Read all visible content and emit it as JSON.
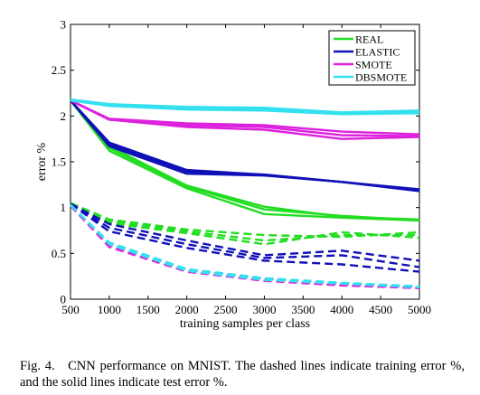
{
  "chart_data": {
    "type": "line",
    "xlabel": "training samples per class",
    "ylabel": "error %",
    "xlim": [
      500,
      5000
    ],
    "ylim": [
      0,
      3
    ],
    "xticks": [
      "500",
      "1000",
      "1500",
      "2000",
      "2500",
      "3000",
      "3500",
      "4000",
      "4500",
      "5000"
    ],
    "yticks": [
      "0",
      "0.5",
      "1",
      "1.5",
      "2",
      "2.5",
      "3"
    ],
    "grid": false,
    "legend_position": "top-right",
    "colors": {
      "REAL": "#22dd22",
      "ELASTIC": "#1010b8",
      "SMOTE": "#dd22dd",
      "DBSMOTE": "#33e0ee"
    },
    "legend": [
      {
        "label": "REAL",
        "color": "#22dd22"
      },
      {
        "label": "ELASTIC",
        "color": "#1010b8"
      },
      {
        "label": "SMOTE",
        "color": "#dd22dd"
      },
      {
        "label": "DBSMOTE",
        "color": "#33e0ee"
      }
    ],
    "x": [
      500,
      1000,
      2000,
      3000,
      4000,
      5000
    ],
    "series": [
      {
        "method": "REAL",
        "kind": "test",
        "values": [
          2.17,
          1.62,
          1.21,
          0.93,
          0.89,
          0.86
        ]
      },
      {
        "method": "REAL",
        "kind": "test",
        "values": [
          2.17,
          1.65,
          1.23,
          0.98,
          0.91,
          0.86
        ]
      },
      {
        "method": "REAL",
        "kind": "test",
        "values": [
          2.17,
          1.67,
          1.24,
          1.01,
          0.9,
          0.87
        ]
      },
      {
        "method": "ELASTIC",
        "kind": "test",
        "values": [
          2.17,
          1.67,
          1.37,
          1.35,
          1.28,
          1.18
        ]
      },
      {
        "method": "ELASTIC",
        "kind": "test",
        "values": [
          2.17,
          1.69,
          1.39,
          1.36,
          1.28,
          1.19
        ]
      },
      {
        "method": "ELASTIC",
        "kind": "test",
        "values": [
          2.17,
          1.71,
          1.41,
          1.36,
          1.28,
          1.2
        ]
      },
      {
        "method": "SMOTE",
        "kind": "test",
        "values": [
          2.17,
          1.96,
          1.88,
          1.85,
          1.75,
          1.77
        ]
      },
      {
        "method": "SMOTE",
        "kind": "test",
        "values": [
          2.17,
          1.96,
          1.9,
          1.88,
          1.79,
          1.78
        ]
      },
      {
        "method": "SMOTE",
        "kind": "test",
        "values": [
          2.17,
          1.97,
          1.92,
          1.9,
          1.83,
          1.8
        ]
      },
      {
        "method": "DBSMOTE",
        "kind": "test",
        "values": [
          2.17,
          2.11,
          2.07,
          2.06,
          2.02,
          2.03
        ]
      },
      {
        "method": "DBSMOTE",
        "kind": "test",
        "values": [
          2.17,
          2.12,
          2.09,
          2.07,
          2.03,
          2.04
        ]
      },
      {
        "method": "DBSMOTE",
        "kind": "test",
        "values": [
          2.18,
          2.13,
          2.1,
          2.09,
          2.04,
          2.06
        ]
      },
      {
        "method": "REAL",
        "kind": "train",
        "values": [
          1.05,
          0.83,
          0.72,
          0.6,
          0.73,
          0.67
        ]
      },
      {
        "method": "REAL",
        "kind": "train",
        "values": [
          1.05,
          0.85,
          0.74,
          0.64,
          0.7,
          0.7
        ]
      },
      {
        "method": "REAL",
        "kind": "train",
        "values": [
          1.05,
          0.87,
          0.76,
          0.7,
          0.68,
          0.73
        ]
      },
      {
        "method": "ELASTIC",
        "kind": "train",
        "values": [
          1.04,
          0.74,
          0.56,
          0.42,
          0.38,
          0.3
        ]
      },
      {
        "method": "ELASTIC",
        "kind": "train",
        "values": [
          1.04,
          0.78,
          0.6,
          0.45,
          0.48,
          0.35
        ]
      },
      {
        "method": "ELASTIC",
        "kind": "train",
        "values": [
          1.04,
          0.82,
          0.64,
          0.48,
          0.53,
          0.42
        ]
      },
      {
        "method": "SMOTE",
        "kind": "train",
        "values": [
          1.02,
          0.57,
          0.3,
          0.2,
          0.15,
          0.12
        ]
      },
      {
        "method": "SMOTE",
        "kind": "train",
        "values": [
          1.02,
          0.59,
          0.32,
          0.22,
          0.16,
          0.13
        ]
      },
      {
        "method": "DBSMOTE",
        "kind": "train",
        "values": [
          1.03,
          0.6,
          0.31,
          0.21,
          0.17,
          0.13
        ]
      },
      {
        "method": "DBSMOTE",
        "kind": "train",
        "values": [
          1.03,
          0.62,
          0.33,
          0.23,
          0.18,
          0.14
        ]
      }
    ]
  },
  "caption": {
    "label": "Fig. 4.",
    "text": "CNN performance on MNIST. The dashed lines indicate training error %, and the solid lines indicate test error %."
  }
}
